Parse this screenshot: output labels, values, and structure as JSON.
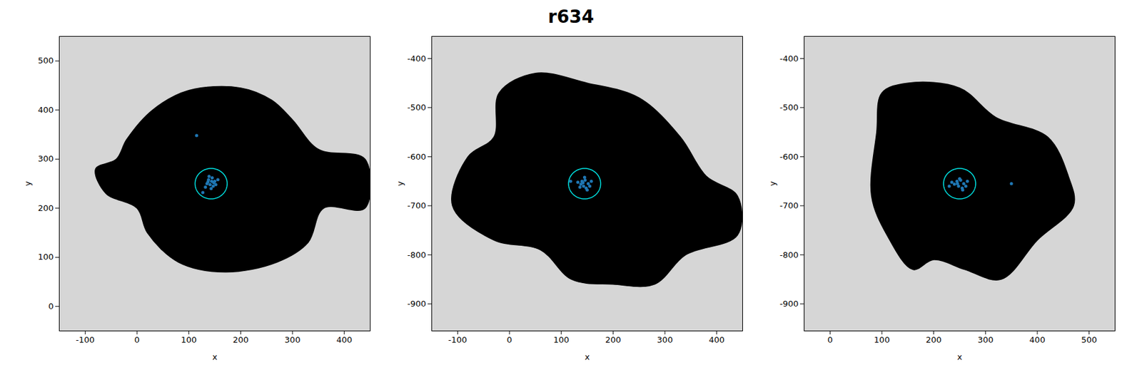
{
  "chart_data": {
    "title": "r634",
    "type": "scatter",
    "panels": [
      {
        "type": "scatter",
        "xlabel": "x",
        "ylabel": "y",
        "xlim": [
          -150,
          450
        ],
        "xticks": [
          -100,
          0,
          100,
          200,
          300,
          400
        ],
        "ylim": [
          -50,
          550
        ],
        "yticks": [
          0,
          100,
          200,
          300,
          400,
          500
        ],
        "halo": {
          "color": "#000000",
          "x": [
            -80,
            -40,
            -20,
            30,
            100,
            200,
            260,
            300,
            350,
            440,
            440,
            360,
            330,
            270,
            170,
            80,
            20,
            0,
            -60
          ],
          "y": [
            280,
            300,
            340,
            400,
            440,
            445,
            420,
            380,
            320,
            300,
            200,
            200,
            130,
            90,
            70,
            90,
            150,
            200,
            230
          ]
        },
        "particles": {
          "color": "#1f77b4",
          "x": [
            138,
            145,
            150,
            141,
            147,
            135,
            152,
            143,
            139,
            148,
            132,
            156,
            144,
            137,
            127,
            115
          ],
          "y": [
            258,
            262,
            255,
            248,
            245,
            250,
            248,
            240,
            265,
            252,
            243,
            258,
            255,
            254,
            232,
            348
          ]
        },
        "circle": {
          "color": "#00e5e5",
          "cx": 143,
          "cy": 250,
          "r": 31
        }
      },
      {
        "type": "scatter",
        "xlabel": "x",
        "ylabel": "y",
        "xlim": [
          -150,
          450
        ],
        "xticks": [
          -100,
          0,
          100,
          200,
          300,
          400
        ],
        "ylim": [
          -955,
          -355
        ],
        "yticks": [
          -900,
          -800,
          -700,
          -600,
          -500,
          -400
        ],
        "halo": {
          "color": "#000000",
          "x": [
            -30,
            -20,
            50,
            150,
            250,
            330,
            380,
            440,
            440,
            340,
            280,
            200,
            120,
            60,
            -30,
            -110,
            -80
          ],
          "y": [
            -560,
            -470,
            -430,
            -450,
            -480,
            -560,
            -640,
            -680,
            -760,
            -800,
            -860,
            -860,
            -850,
            -790,
            -770,
            -700,
            -600
          ]
        },
        "particles": {
          "color": "#1f77b4",
          "x": [
            140,
            146,
            152,
            143,
            148,
            138,
            155,
            145,
            132,
            150,
            142,
            158,
            118,
            136
          ],
          "y": [
            -650,
            -648,
            -655,
            -660,
            -664,
            -656,
            -660,
            -642,
            -652,
            -668,
            -653,
            -650,
            -650,
            -662
          ]
        },
        "circle": {
          "color": "#00e5e5",
          "cx": 145,
          "cy": -655,
          "r": 31
        }
      },
      {
        "type": "scatter",
        "xlabel": "x",
        "ylabel": "y",
        "xlim": [
          -50,
          550
        ],
        "xticks": [
          0,
          100,
          200,
          300,
          400,
          500
        ],
        "ylim": [
          -955,
          -355
        ],
        "yticks": [
          -900,
          -800,
          -700,
          -600,
          -500,
          -400
        ],
        "halo": {
          "color": "#000000",
          "x": [
            90,
            100,
            150,
            250,
            320,
            420,
            460,
            470,
            400,
            330,
            260,
            200,
            160,
            110,
            80
          ],
          "y": [
            -550,
            -470,
            -450,
            -460,
            -520,
            -560,
            -640,
            -700,
            -770,
            -850,
            -830,
            -810,
            -830,
            -760,
            -680
          ]
        },
        "particles": {
          "color": "#1f77b4",
          "x": [
            245,
            252,
            258,
            248,
            255,
            240,
            262,
            250,
            235,
            256,
            246,
            265,
            230,
            350
          ],
          "y": [
            -650,
            -648,
            -655,
            -660,
            -664,
            -656,
            -660,
            -645,
            -652,
            -668,
            -655,
            -650,
            -660,
            -655
          ]
        },
        "circle": {
          "color": "#00e5e5",
          "cx": 250,
          "cy": -655,
          "r": 31
        }
      }
    ]
  }
}
